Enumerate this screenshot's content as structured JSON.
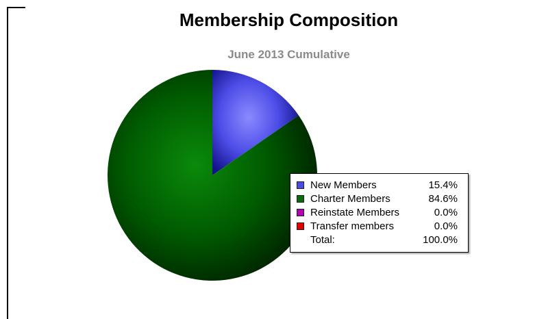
{
  "chart_data": {
    "type": "pie",
    "title": "Membership Composition",
    "subtitle": "June 2013 Cumulative",
    "slices": [
      {
        "label": "New Members",
        "value": 15.4,
        "display": "15.4%",
        "color": "#3a3ad8"
      },
      {
        "label": "Charter Members",
        "value": 84.6,
        "display": "84.6%",
        "color": "#006400"
      },
      {
        "label": "Reinstate Members",
        "value": 0.0,
        "display": "0.0%",
        "color": "#a000a0"
      },
      {
        "label": "Transfer members",
        "value": 0.0,
        "display": "0.0%",
        "color": "#dd0000"
      }
    ],
    "total": {
      "label": "Total:",
      "display": "100.0%"
    },
    "legend_placement": "right-overlapping"
  }
}
